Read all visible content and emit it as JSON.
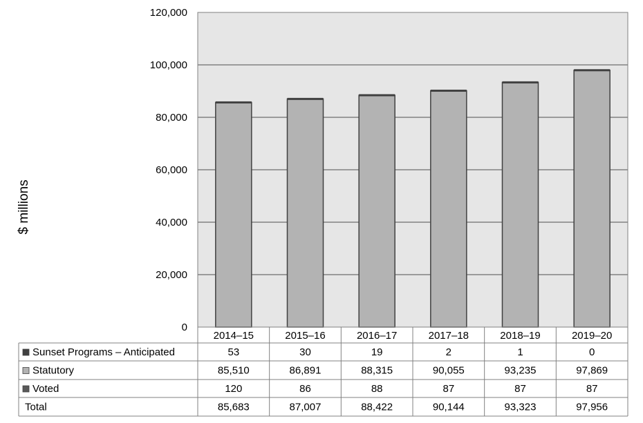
{
  "chart_data": {
    "type": "bar",
    "stacked": true,
    "ylabel": "$ millions",
    "ylim": [
      0,
      120000
    ],
    "yticks": [
      "0",
      "20,000",
      "40,000",
      "60,000",
      "80,000",
      "100,000",
      "120,000"
    ],
    "ytick_values": [
      0,
      20000,
      40000,
      60000,
      80000,
      100000,
      120000
    ],
    "grid": true,
    "categories": [
      "2014–15",
      "2015–16",
      "2016–17",
      "2017–18",
      "2018–19",
      "2019–20"
    ],
    "series": [
      {
        "name": "Voted",
        "values": [
          120,
          86,
          88,
          87,
          87,
          87
        ],
        "display": [
          "120",
          "86",
          "88",
          "87",
          "87",
          "87"
        ],
        "color": "#595959"
      },
      {
        "name": "Statutory",
        "values": [
          85510,
          86891,
          88315,
          90055,
          93235,
          97869
        ],
        "display": [
          "85,510",
          "86,891",
          "88,315",
          "90,055",
          "93,235",
          "97,869"
        ],
        "color": "#b3b3b3"
      },
      {
        "name": "Sunset Programs – Anticipated",
        "values": [
          53,
          30,
          19,
          2,
          1,
          0
        ],
        "display": [
          "53",
          "30",
          "19",
          "2",
          "1",
          "0"
        ],
        "color": "#404040"
      }
    ],
    "total": {
      "name": "Total",
      "values": [
        85683,
        87007,
        88422,
        90144,
        93323,
        97956
      ],
      "display": [
        "85,683",
        "87,007",
        "88,422",
        "90,144",
        "93,323",
        "97,956"
      ]
    },
    "table_row_order": [
      "Sunset Programs – Anticipated",
      "Statutory",
      "Voted",
      "Total"
    ],
    "plot_background": "#e6e6e6",
    "grid_color": "#808080",
    "bar_outline": "#404040"
  }
}
